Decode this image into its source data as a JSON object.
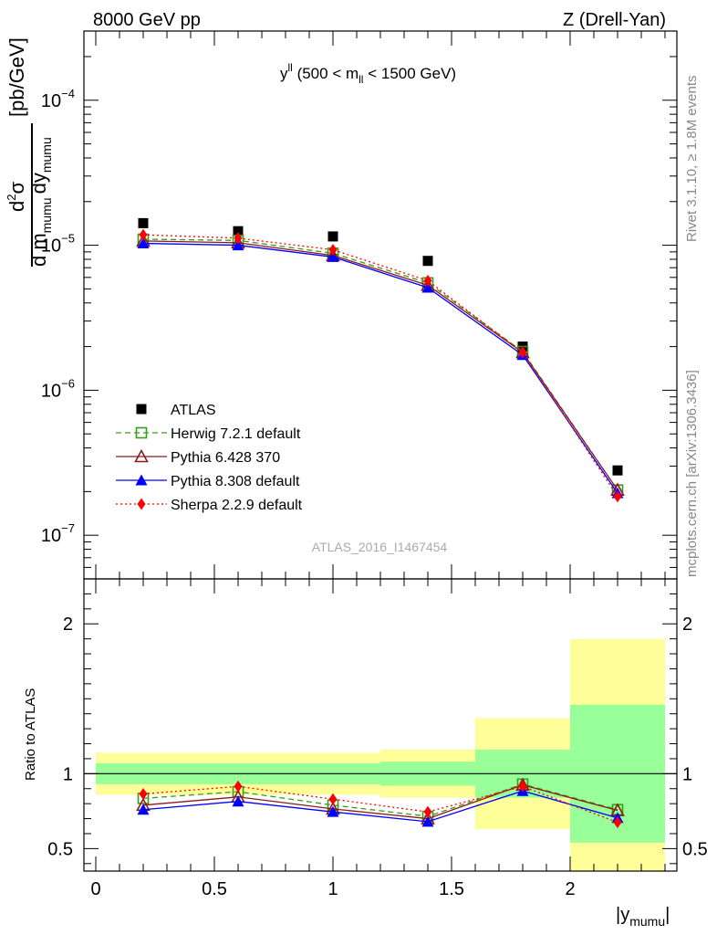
{
  "header": {
    "left": "8000 GeV pp",
    "right": "Z (Drell-Yan)"
  },
  "side_labels": {
    "rivet": "Rivet 3.1.10, ≥ 1.8M events",
    "mcplots": "mcplots.cern.ch [arXiv:1306.3436]"
  },
  "chart_data": [
    {
      "type": "scatter",
      "panel": "main",
      "title": "y^{ll} (500 < m_{ll} < 1500 GeV)",
      "title_parts": {
        "base": "y",
        "sup": "ll",
        "rest1": " (500 < m",
        "sub": "ll",
        "rest2": " < 1500 GeV)"
      },
      "watermark": "ATLAS_2016_I1467454",
      "ylabel": "d²σ / d m_mumu dy_mumu [pb/GeV]",
      "ylabel_parts": {
        "num": "d",
        "num_sup": "2",
        "num_sigma": "σ",
        "den1": "d m",
        "den_sub1": "mumu",
        "den2": "dy",
        "den_sub2": "mumu",
        "unit": "[pb/GeV]"
      },
      "yscale": "log",
      "ylim": [
        5e-08,
        0.0003
      ],
      "xlim": [
        -0.05,
        2.45
      ],
      "yticks": [
        {
          "value": 1e-07,
          "base": "10",
          "exp": "−7"
        },
        {
          "value": 1e-06,
          "base": "10",
          "exp": "−6"
        },
        {
          "value": 1e-05,
          "base": "10",
          "exp": "−5"
        },
        {
          "value": 0.0001,
          "base": "10",
          "exp": "−4"
        }
      ],
      "legend_position": "lower-left",
      "x": [
        0.2,
        0.6,
        1.0,
        1.4,
        1.8,
        2.2
      ],
      "series": [
        {
          "name": "ATLAS",
          "color": "#000000",
          "marker": "square-filled",
          "line": "none",
          "values": [
            1.42e-05,
            1.25e-05,
            1.15e-05,
            7.8e-06,
            2e-06,
            2.8e-07
          ]
        },
        {
          "name": "Herwig 7.2.1 default",
          "color": "#3a9a1a",
          "marker": "square-open",
          "line": "dashed",
          "values": [
            1.1e-05,
            1.08e-05,
            8.8e-06,
            5.5e-06,
            1.85e-06,
            2.05e-07
          ]
        },
        {
          "name": "Pythia 6.428 370",
          "color": "#8b1a1a",
          "marker": "triangle-open",
          "line": "solid",
          "values": [
            1.07e-05,
            1.04e-05,
            8.5e-06,
            5.3e-06,
            1.82e-06,
            2.05e-07
          ]
        },
        {
          "name": "Pythia 8.308 default",
          "color": "#0000ff",
          "marker": "triangle-filled",
          "line": "solid",
          "values": [
            1.03e-05,
            1e-05,
            8.3e-06,
            5.1e-06,
            1.75e-06,
            1.95e-07
          ]
        },
        {
          "name": "Sherpa 2.2.9 default",
          "color": "#ff0000",
          "marker": "diamond-filled",
          "line": "dotted",
          "values": [
            1.18e-05,
            1.12e-05,
            9.3e-06,
            5.7e-06,
            1.82e-06,
            1.85e-07
          ]
        }
      ]
    },
    {
      "type": "line",
      "panel": "ratio",
      "ylabel": "Ratio to ATLAS",
      "xlabel": "|y_mumu|",
      "xlabel_parts": {
        "base": "|y",
        "sub": "mumu",
        "end": "|"
      },
      "ylim": [
        0.35,
        2.3
      ],
      "xlim": [
        -0.05,
        2.45
      ],
      "yticks": [
        0.5,
        1,
        2
      ],
      "ytick_labels": [
        "0.5",
        "1",
        "2"
      ],
      "xticks": [
        0,
        0.5,
        1,
        1.5,
        2
      ],
      "xtick_labels": [
        "0",
        "0.5",
        "1",
        "1.5",
        "2"
      ],
      "reference_line": 1,
      "bands": [
        {
          "x0": 0.0,
          "x1": 0.4,
          "stat": [
            0.93,
            1.07
          ],
          "total": [
            0.86,
            1.14
          ]
        },
        {
          "x0": 0.4,
          "x1": 0.8,
          "stat": [
            0.93,
            1.07
          ],
          "total": [
            0.86,
            1.14
          ]
        },
        {
          "x0": 0.8,
          "x1": 1.2,
          "stat": [
            0.93,
            1.07
          ],
          "total": [
            0.86,
            1.14
          ]
        },
        {
          "x0": 1.2,
          "x1": 1.6,
          "stat": [
            0.92,
            1.08
          ],
          "total": [
            0.84,
            1.16
          ]
        },
        {
          "x0": 1.6,
          "x1": 2.0,
          "stat": [
            0.84,
            1.16
          ],
          "total": [
            0.63,
            1.37
          ]
        },
        {
          "x0": 2.0,
          "x1": 2.4,
          "stat": [
            0.54,
            1.46
          ],
          "total": [
            0.3,
            1.9
          ]
        }
      ],
      "band_colors": {
        "stat": "#99ff99",
        "total": "#ffff99"
      },
      "x": [
        0.2,
        0.6,
        1.0,
        1.4,
        1.8,
        2.2
      ],
      "series": [
        {
          "name": "Herwig 7.2.1 default",
          "color": "#3a9a1a",
          "marker": "square-open",
          "line": "dashed",
          "values": [
            0.835,
            0.88,
            0.79,
            0.715,
            0.93,
            0.76
          ]
        },
        {
          "name": "Pythia 6.428 370",
          "color": "#8b1a1a",
          "marker": "triangle-open",
          "line": "solid",
          "values": [
            0.79,
            0.845,
            0.765,
            0.7,
            0.925,
            0.755
          ]
        },
        {
          "name": "Pythia 8.308 default",
          "color": "#0000ff",
          "marker": "triangle-filled",
          "line": "solid",
          "values": [
            0.76,
            0.815,
            0.745,
            0.68,
            0.885,
            0.705
          ]
        },
        {
          "name": "Sherpa 2.2.9 default",
          "color": "#ff0000",
          "marker": "diamond-filled",
          "line": "dotted",
          "values": [
            0.865,
            0.915,
            0.83,
            0.745,
            0.915,
            0.675
          ]
        }
      ]
    }
  ]
}
